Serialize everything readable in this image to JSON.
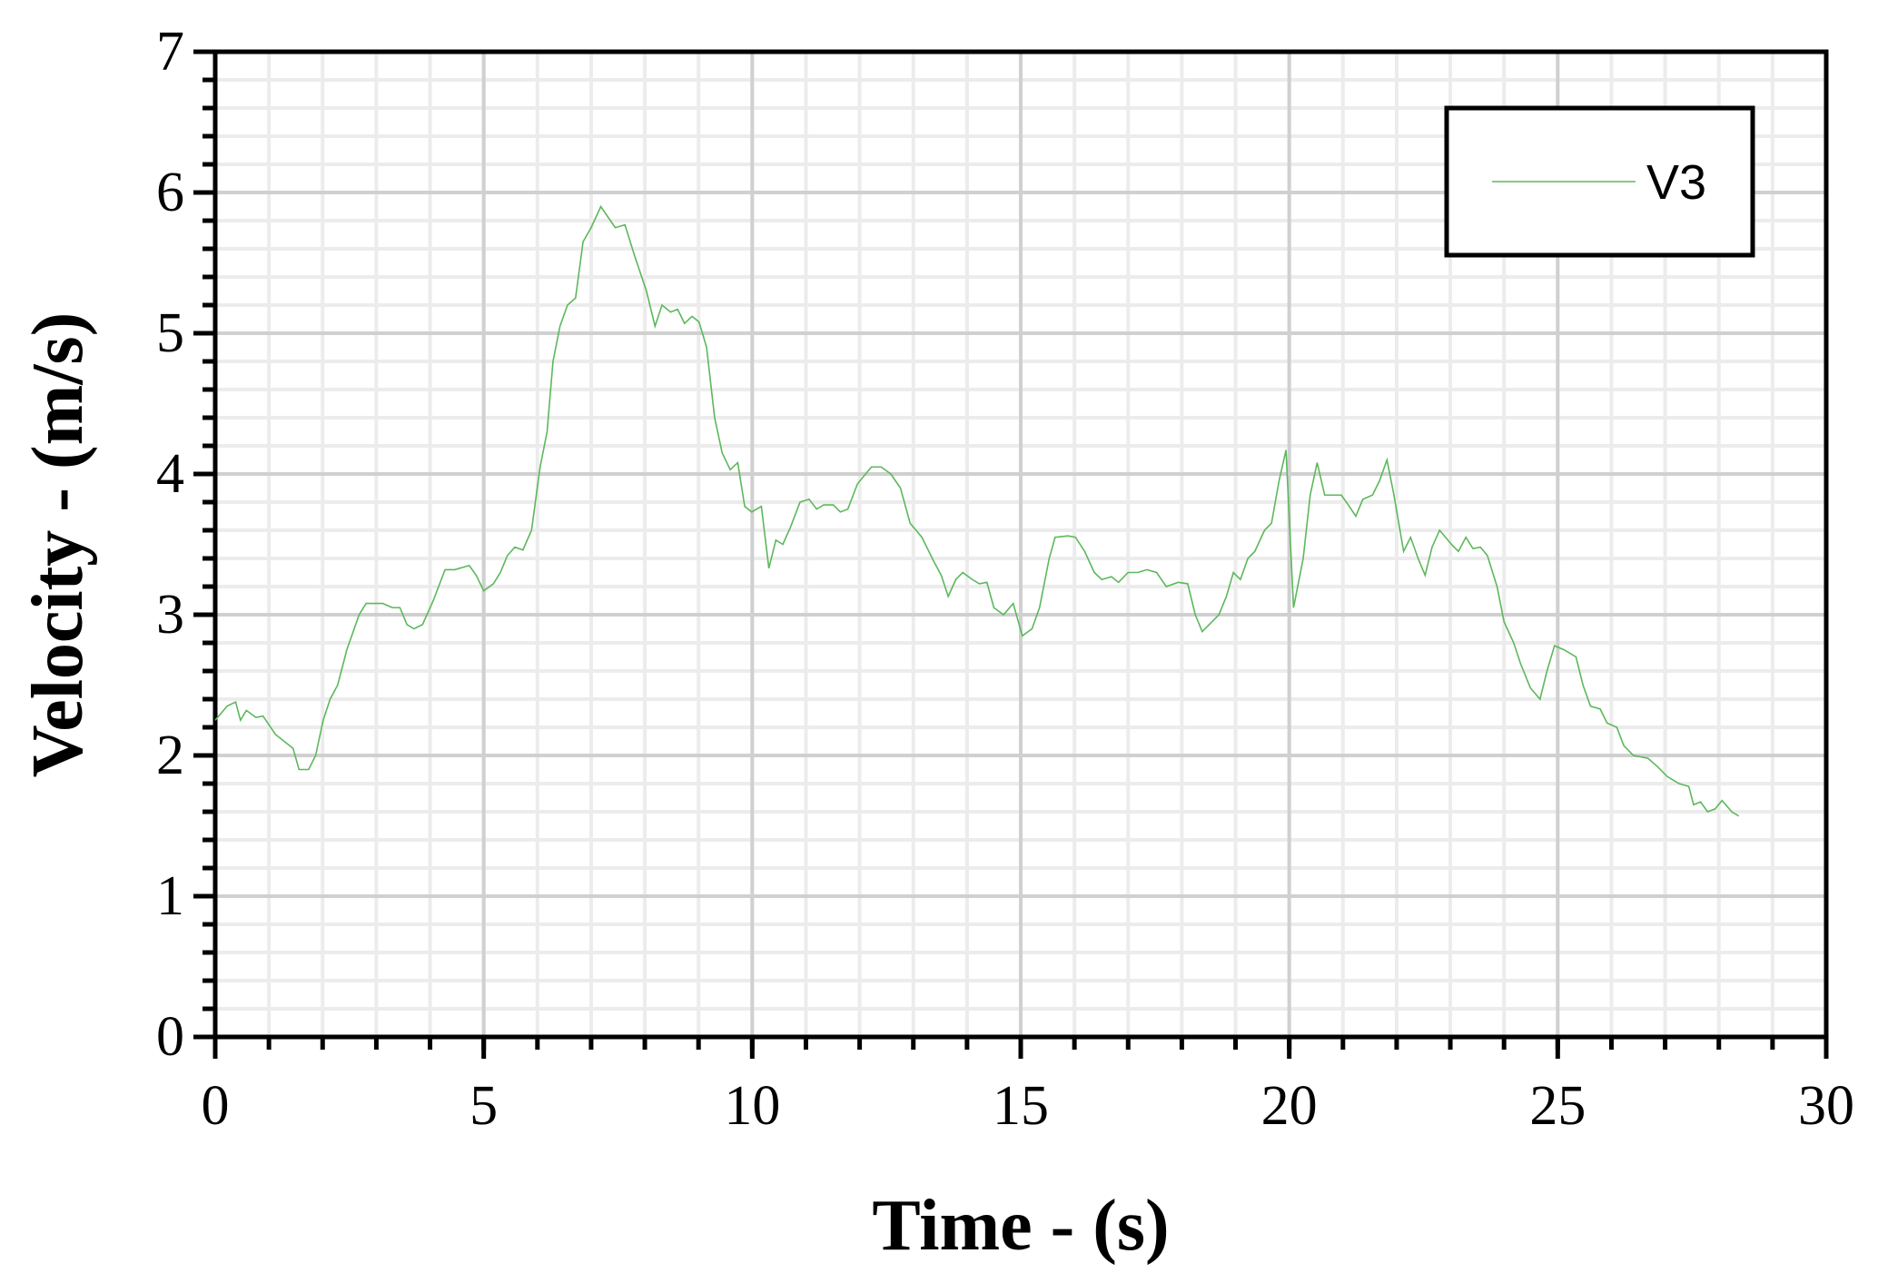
{
  "chart_data": {
    "type": "line",
    "xlabel": "Time - (s)",
    "ylabel": "Velocity - (m/s)",
    "xlim": [
      0,
      30
    ],
    "ylim": [
      0,
      7
    ],
    "xticks": [
      0,
      5,
      10,
      15,
      20,
      25,
      30
    ],
    "yticks": [
      0,
      1,
      2,
      3,
      4,
      5,
      6,
      7
    ],
    "xminor": 1,
    "yminor": 0.2,
    "grid": true,
    "legend": "upper right",
    "x": [
      0,
      0.22,
      0.38,
      0.47,
      0.58,
      0.76,
      0.89,
      1.12,
      1.45,
      1.56,
      1.74,
      1.87,
      2.01,
      2.14,
      2.28,
      2.45,
      2.68,
      2.81,
      3.12,
      3.3,
      3.44,
      3.57,
      3.7,
      3.86,
      4.06,
      4.28,
      4.46,
      4.73,
      4.86,
      5.0,
      5.18,
      5.31,
      5.44,
      5.58,
      5.73,
      5.89,
      6.05,
      6.18,
      6.29,
      6.42,
      6.56,
      6.71,
      6.85,
      7.0,
      7.18,
      7.36,
      7.45,
      7.63,
      7.81,
      8.03,
      8.19,
      8.32,
      8.48,
      8.61,
      8.74,
      8.88,
      9.01,
      9.15,
      9.3,
      9.44,
      9.59,
      9.73,
      9.86,
      9.99,
      10.17,
      10.31,
      10.44,
      10.57,
      10.71,
      10.89,
      11.06,
      11.2,
      11.33,
      11.51,
      11.64,
      11.78,
      11.96,
      12.22,
      12.4,
      12.58,
      12.76,
      12.94,
      13.16,
      13.38,
      13.52,
      13.65,
      13.79,
      13.92,
      14.1,
      14.23,
      14.37,
      14.5,
      14.68,
      14.86,
      15.03,
      15.21,
      15.35,
      15.53,
      15.64,
      15.88,
      16.02,
      16.19,
      16.37,
      16.51,
      16.69,
      16.82,
      17.0,
      17.18,
      17.35,
      17.53,
      17.71,
      17.93,
      18.11,
      18.25,
      18.38,
      18.51,
      18.69,
      18.83,
      18.96,
      19.09,
      19.23,
      19.36,
      19.54,
      19.67,
      19.81,
      19.94,
      20.08,
      20.26,
      20.39,
      20.52,
      20.66,
      20.97,
      21.1,
      21.24,
      21.37,
      21.55,
      21.68,
      21.82,
      21.95,
      22.13,
      22.26,
      22.4,
      22.53,
      22.66,
      22.8,
      23.02,
      23.15,
      23.29,
      23.42,
      23.56,
      23.69,
      23.87,
      24.0,
      24.18,
      24.31,
      24.49,
      24.67,
      24.8,
      24.94,
      25.12,
      25.34,
      25.47,
      25.61,
      25.79,
      25.92,
      26.1,
      26.23,
      26.41,
      26.68,
      26.86,
      27.04,
      27.26,
      27.44,
      27.53,
      27.66,
      27.79,
      27.93,
      28.06,
      28.24,
      28.37
    ],
    "series": [
      {
        "name": "V3",
        "color": "#5cb85c",
        "values": [
          2.25,
          2.35,
          2.38,
          2.25,
          2.32,
          2.27,
          2.28,
          2.15,
          2.05,
          1.9,
          1.9,
          2.0,
          2.25,
          2.4,
          2.5,
          2.75,
          3.0,
          3.08,
          3.08,
          3.05,
          3.05,
          2.93,
          2.9,
          2.93,
          3.1,
          3.32,
          3.32,
          3.35,
          3.28,
          3.17,
          3.22,
          3.3,
          3.42,
          3.48,
          3.46,
          3.6,
          4.05,
          4.3,
          4.8,
          5.05,
          5.2,
          5.25,
          5.65,
          5.75,
          5.9,
          5.8,
          5.75,
          5.77,
          5.55,
          5.3,
          5.05,
          5.2,
          5.15,
          5.17,
          5.07,
          5.12,
          5.08,
          4.9,
          4.4,
          4.15,
          4.03,
          4.08,
          3.77,
          3.73,
          3.77,
          3.33,
          3.53,
          3.5,
          3.62,
          3.8,
          3.82,
          3.75,
          3.78,
          3.78,
          3.73,
          3.75,
          3.93,
          4.05,
          4.05,
          4.0,
          3.9,
          3.65,
          3.55,
          3.38,
          3.28,
          3.13,
          3.25,
          3.3,
          3.25,
          3.22,
          3.23,
          3.05,
          3.0,
          3.08,
          2.85,
          2.9,
          3.05,
          3.4,
          3.55,
          3.56,
          3.55,
          3.45,
          3.3,
          3.25,
          3.27,
          3.23,
          3.3,
          3.3,
          3.32,
          3.3,
          3.2,
          3.23,
          3.22,
          3.0,
          2.88,
          2.93,
          3.0,
          3.13,
          3.3,
          3.25,
          3.4,
          3.45,
          3.6,
          3.65,
          3.95,
          4.17,
          3.05,
          3.4,
          3.85,
          4.08,
          3.85,
          3.85,
          3.78,
          3.7,
          3.82,
          3.85,
          3.95,
          4.1,
          3.85,
          3.45,
          3.55,
          3.4,
          3.28,
          3.48,
          3.6,
          3.5,
          3.45,
          3.55,
          3.47,
          3.48,
          3.42,
          3.2,
          2.95,
          2.8,
          2.65,
          2.48,
          2.4,
          2.6,
          2.78,
          2.75,
          2.7,
          2.5,
          2.35,
          2.33,
          2.23,
          2.2,
          2.07,
          2.0,
          1.98,
          1.92,
          1.85,
          1.8,
          1.78,
          1.65,
          1.67,
          1.6,
          1.62,
          1.68,
          1.6,
          1.57
        ]
      }
    ]
  }
}
